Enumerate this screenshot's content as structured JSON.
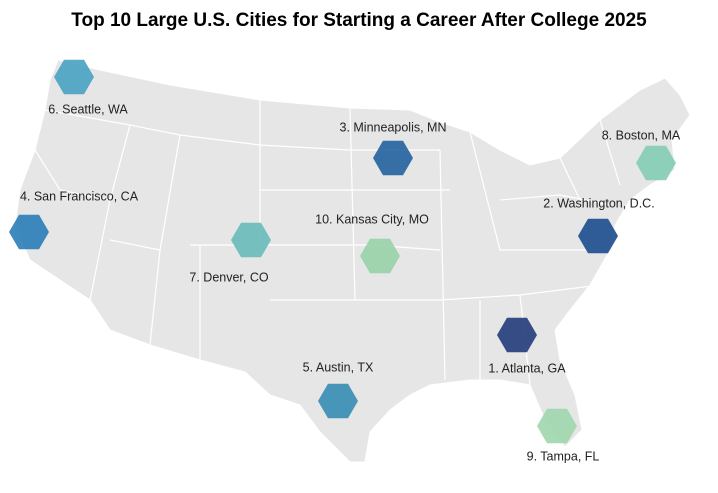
{
  "title": "Top 10 Large U.S. Cities for Starting a Career After College 2025",
  "cities": [
    {
      "label": "1. Atlanta, GA",
      "color": "#263f7d"
    },
    {
      "label": "2. Washington, D.C.",
      "color": "#1f4f8f"
    },
    {
      "label": "3. Minneapolis, MN",
      "color": "#2765a1"
    },
    {
      "label": "4. San Francisco, CA",
      "color": "#2e80b9"
    },
    {
      "label": "5. Austin, TX",
      "color": "#3b8eb6"
    },
    {
      "label": "6. Seattle, WA",
      "color": "#4ca4c3"
    },
    {
      "label": "7. Denver, CO",
      "color": "#6cbcbc"
    },
    {
      "label": "8. Boston, MA",
      "color": "#86cdb4"
    },
    {
      "label": "10. Kansas City, MO",
      "color": "#9ad3aa"
    },
    {
      "label": "9. Tampa, FL",
      "color": "#a2d7b0"
    }
  ]
}
